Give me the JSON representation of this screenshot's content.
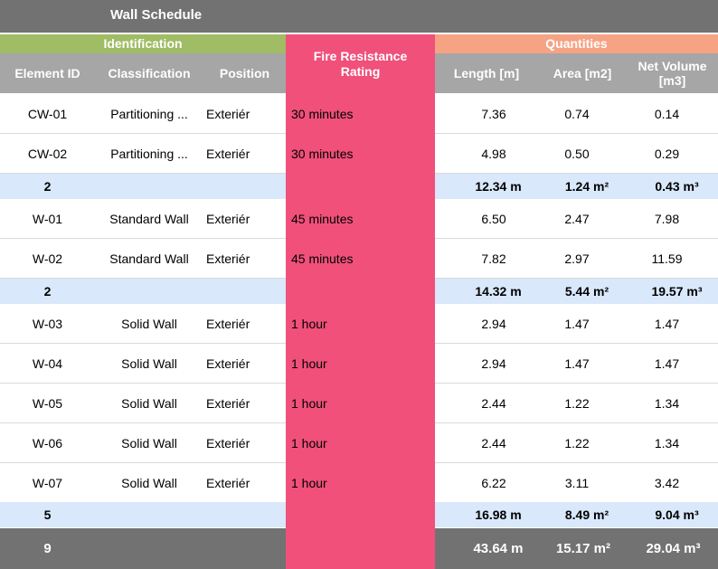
{
  "title": "Wall Schedule",
  "colors": {
    "title_bg": "#727272",
    "identification": "#a0bc64",
    "fire": "#f0507a",
    "quantities": "#f6a383",
    "header": "#a6a6a6",
    "subtotal": "#d9e8fb",
    "total": "#727272"
  },
  "groups": {
    "identification": "Identification",
    "fire": "Fire Resistance Rating",
    "quantities": "Quantities"
  },
  "columns": {
    "element_id": "Element ID",
    "classification": "Classification",
    "position": "Position",
    "length": "Length [m]",
    "area": "Area [m2]",
    "volume": "Net Volume [m3]"
  },
  "rows": {
    "r1": {
      "id": "CW-01",
      "classification": "Partitioning ...",
      "position": "Exteriér",
      "fire": "30 minutes",
      "length": "7.36",
      "area": "0.74",
      "volume": "0.14"
    },
    "r2": {
      "id": "CW-02",
      "classification": "Partitioning ...",
      "position": "Exteriér",
      "fire": "30 minutes",
      "length": "4.98",
      "area": "0.50",
      "volume": "0.29"
    },
    "s1": {
      "count": "2",
      "length": "12.34 m",
      "area": "1.24 m²",
      "volume": "0.43 m³"
    },
    "r3": {
      "id": "W-01",
      "classification": "Standard Wall",
      "position": "Exteriér",
      "fire": "45 minutes",
      "length": "6.50",
      "area": "2.47",
      "volume": "7.98"
    },
    "r4": {
      "id": "W-02",
      "classification": "Standard Wall",
      "position": "Exteriér",
      "fire": "45 minutes",
      "length": "7.82",
      "area": "2.97",
      "volume": "11.59"
    },
    "s2": {
      "count": "2",
      "length": "14.32 m",
      "area": "5.44 m²",
      "volume": "19.57 m³"
    },
    "r5": {
      "id": "W-03",
      "classification": "Solid Wall",
      "position": "Exteriér",
      "fire": "1 hour",
      "length": "2.94",
      "area": "1.47",
      "volume": "1.47"
    },
    "r6": {
      "id": "W-04",
      "classification": "Solid Wall",
      "position": "Exteriér",
      "fire": "1 hour",
      "length": "2.94",
      "area": "1.47",
      "volume": "1.47"
    },
    "r7": {
      "id": "W-05",
      "classification": "Solid Wall",
      "position": "Exteriér",
      "fire": "1 hour",
      "length": "2.44",
      "area": "1.22",
      "volume": "1.34"
    },
    "r8": {
      "id": "W-06",
      "classification": "Solid Wall",
      "position": "Exteriér",
      "fire": "1 hour",
      "length": "2.44",
      "area": "1.22",
      "volume": "1.34"
    },
    "r9": {
      "id": "W-07",
      "classification": "Solid Wall",
      "position": "Exteriér",
      "fire": "1 hour",
      "length": "6.22",
      "area": "3.11",
      "volume": "3.42"
    },
    "s3": {
      "count": "5",
      "length": "16.98 m",
      "area": "8.49 m²",
      "volume": "9.04 m³"
    },
    "total": {
      "count": "9",
      "length": "43.64 m",
      "area": "15.17 m²",
      "volume": "29.04 m³"
    }
  }
}
